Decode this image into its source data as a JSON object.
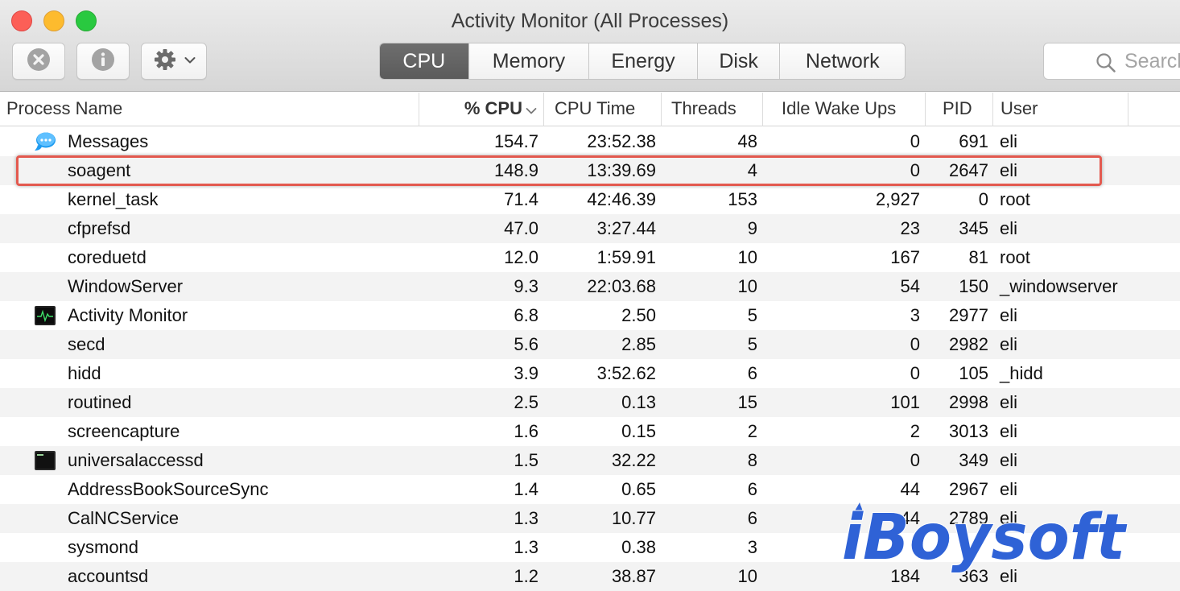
{
  "window": {
    "title": "Activity Monitor (All Processes)"
  },
  "toolbar": {
    "stop_icon": "stop-process-icon",
    "info_icon": "info-icon",
    "gear_icon": "gear-icon",
    "tabs": [
      "CPU",
      "Memory",
      "Energy",
      "Disk",
      "Network"
    ],
    "active_tab": "CPU",
    "search_placeholder": "Search"
  },
  "table": {
    "columns": {
      "name": "Process Name",
      "cpu": "% CPU",
      "cpu_time": "CPU Time",
      "threads": "Threads",
      "idle_wake_ups": "Idle Wake Ups",
      "pid": "PID",
      "user": "User"
    },
    "sort_column": "% CPU",
    "sort_direction": "descending",
    "rows": [
      {
        "icon": "messages-icon",
        "name": "Messages",
        "cpu": "154.7",
        "cpu_time": "23:52.38",
        "threads": "48",
        "idle": "0",
        "pid": "691",
        "user": "eli"
      },
      {
        "icon": "",
        "name": "soagent",
        "cpu": "148.9",
        "cpu_time": "13:39.69",
        "threads": "4",
        "idle": "0",
        "pid": "2647",
        "user": "eli"
      },
      {
        "icon": "",
        "name": "kernel_task",
        "cpu": "71.4",
        "cpu_time": "42:46.39",
        "threads": "153",
        "idle": "2,927",
        "pid": "0",
        "user": "root"
      },
      {
        "icon": "",
        "name": "cfprefsd",
        "cpu": "47.0",
        "cpu_time": "3:27.44",
        "threads": "9",
        "idle": "23",
        "pid": "345",
        "user": "eli"
      },
      {
        "icon": "",
        "name": "coreduetd",
        "cpu": "12.0",
        "cpu_time": "1:59.91",
        "threads": "10",
        "idle": "167",
        "pid": "81",
        "user": "root"
      },
      {
        "icon": "",
        "name": "WindowServer",
        "cpu": "9.3",
        "cpu_time": "22:03.68",
        "threads": "10",
        "idle": "54",
        "pid": "150",
        "user": "_windowserver"
      },
      {
        "icon": "activity-monitor-icon",
        "name": "Activity Monitor",
        "cpu": "6.8",
        "cpu_time": "2.50",
        "threads": "5",
        "idle": "3",
        "pid": "2977",
        "user": "eli"
      },
      {
        "icon": "",
        "name": "secd",
        "cpu": "5.6",
        "cpu_time": "2.85",
        "threads": "5",
        "idle": "0",
        "pid": "2982",
        "user": "eli"
      },
      {
        "icon": "",
        "name": "hidd",
        "cpu": "3.9",
        "cpu_time": "3:52.62",
        "threads": "6",
        "idle": "0",
        "pid": "105",
        "user": "_hidd"
      },
      {
        "icon": "",
        "name": "routined",
        "cpu": "2.5",
        "cpu_time": "0.13",
        "threads": "15",
        "idle": "101",
        "pid": "2998",
        "user": "eli"
      },
      {
        "icon": "",
        "name": "screencapture",
        "cpu": "1.6",
        "cpu_time": "0.15",
        "threads": "2",
        "idle": "2",
        "pid": "3013",
        "user": "eli"
      },
      {
        "icon": "terminal-icon",
        "name": "universalaccessd",
        "cpu": "1.5",
        "cpu_time": "32.22",
        "threads": "8",
        "idle": "0",
        "pid": "349",
        "user": "eli"
      },
      {
        "icon": "",
        "name": "AddressBookSourceSync",
        "cpu": "1.4",
        "cpu_time": "0.65",
        "threads": "6",
        "idle": "44",
        "pid": "2967",
        "user": "eli"
      },
      {
        "icon": "",
        "name": "CalNCService",
        "cpu": "1.3",
        "cpu_time": "10.77",
        "threads": "6",
        "idle": "44",
        "pid": "2789",
        "user": "eli"
      },
      {
        "icon": "",
        "name": "sysmond",
        "cpu": "1.3",
        "cpu_time": "0.38",
        "threads": "3",
        "idle": "",
        "pid": "",
        "user": ""
      },
      {
        "icon": "",
        "name": "accountsd",
        "cpu": "1.2",
        "cpu_time": "38.87",
        "threads": "10",
        "idle": "184",
        "pid": "363",
        "user": "eli"
      }
    ],
    "highlighted_row": "soagent"
  },
  "watermark": {
    "text": "iBoysoft",
    "color": "#2f62d6"
  }
}
